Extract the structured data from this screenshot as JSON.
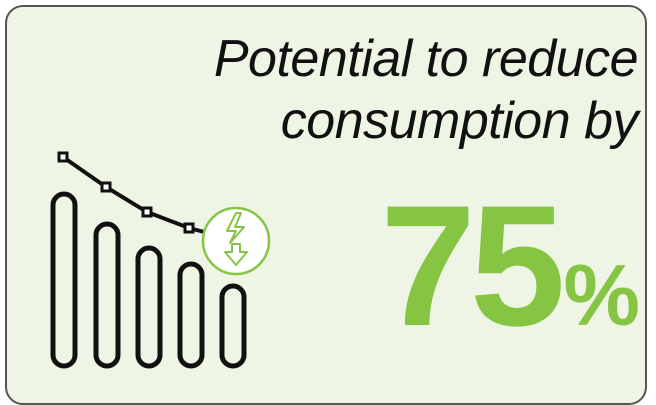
{
  "headline": {
    "line1": "Potential to reduce",
    "line2": "consumption by"
  },
  "stat": {
    "value": "75",
    "unit": "%"
  },
  "icon": {
    "name": "energy-down-icon",
    "accent": "#86c443"
  },
  "colors": {
    "background": "#eef5e5",
    "accent": "#86c443",
    "border": "#555555"
  }
}
